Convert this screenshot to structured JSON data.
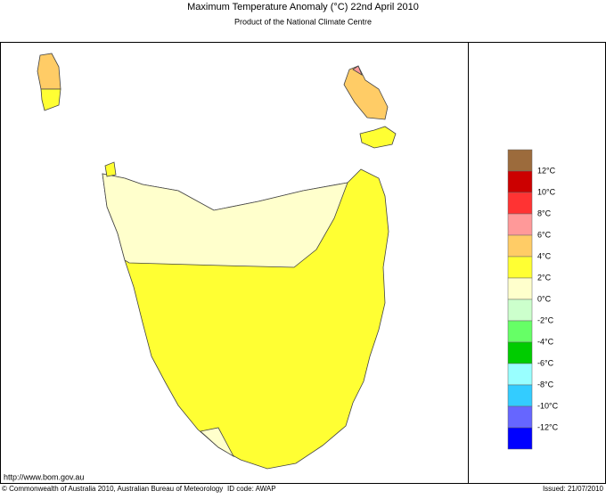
{
  "header": {
    "title": "Maximum Temperature Anomaly (°C)  22nd April 2010",
    "subtitle": "Product of the National Climate Centre"
  },
  "legend": {
    "colors": [
      "#9c6b3c",
      "#cc0000",
      "#ff3333",
      "#ff9999",
      "#ffcc66",
      "#ffff33",
      "#ffffcc",
      "#ccffcc",
      "#66ff66",
      "#00cc00",
      "#99ffff",
      "#33ccff",
      "#6666ff",
      "#0000ff"
    ],
    "labels": [
      "12°C",
      "10°C",
      "8°C",
      "6°C",
      "4°C",
      "2°C",
      "0°C",
      "-2°C",
      "-4°C",
      "-6°C",
      "-8°C",
      "-10°C",
      "-12°C"
    ]
  },
  "footer": {
    "url": "http://www.bom.gov.au",
    "copyright": "© Commonwealth of Australia 2010, Australian Bureau of Meteorology",
    "id_code": "ID code: AWAP",
    "issued": "Issued: 21/07/2010"
  }
}
